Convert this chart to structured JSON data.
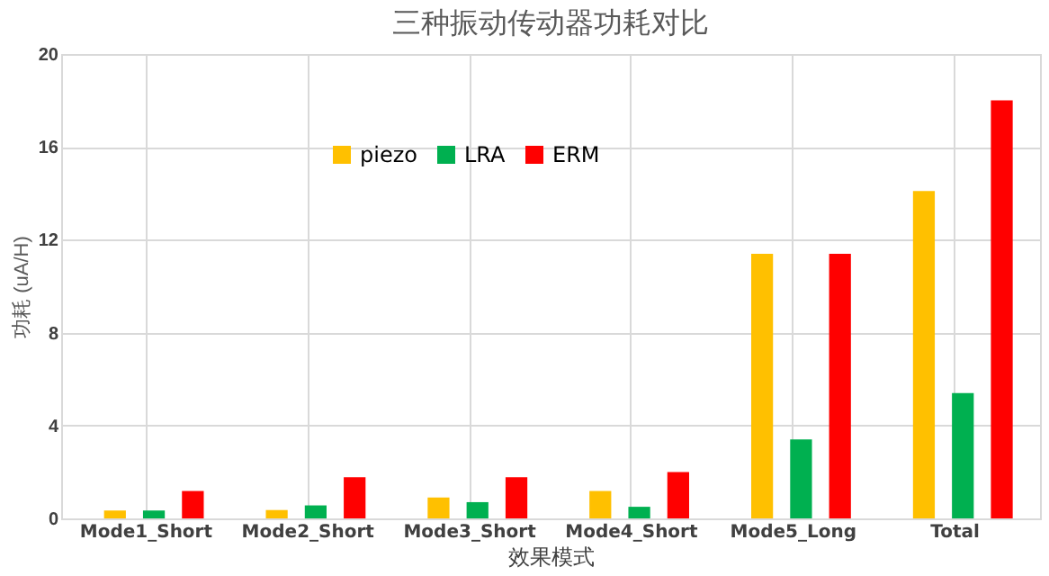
{
  "chart_data": {
    "type": "bar",
    "title": "三种振动传动器功耗对比",
    "xlabel": "效果模式",
    "ylabel": "功耗 (uA/H)",
    "categories": [
      "Mode1_Short",
      "Mode2_Short",
      "Mode3_Short",
      "Mode4_Short",
      "Mode5_Long",
      "Total"
    ],
    "series": [
      {
        "name": "piezo",
        "color": "#ffc000",
        "values": [
          0.34,
          0.36,
          0.9,
          1.18,
          11.4,
          14.1
        ]
      },
      {
        "name": "LRA",
        "color": "#00b050",
        "values": [
          0.34,
          0.56,
          0.7,
          0.5,
          3.4,
          5.4
        ]
      },
      {
        "name": "ERM",
        "color": "#ff0000",
        "values": [
          1.18,
          1.77,
          1.77,
          2.0,
          11.4,
          18.0
        ]
      }
    ],
    "ylim": [
      0,
      20
    ],
    "yticks": [
      0,
      4,
      8,
      12,
      16,
      20
    ],
    "grid": true,
    "legend": "top"
  }
}
